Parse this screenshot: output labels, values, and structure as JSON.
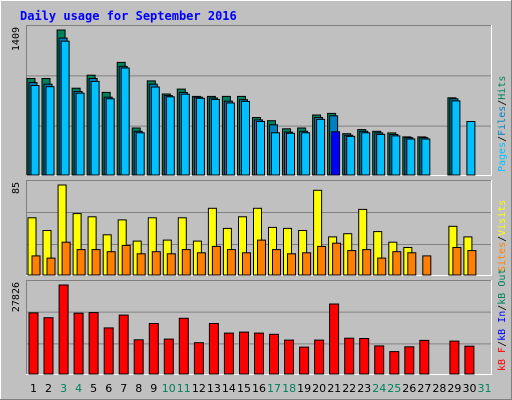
{
  "title": "Daily usage for September 2016",
  "colors": {
    "background": "#C0C0C0",
    "title": "#0000FF",
    "pages": "#00C0FF",
    "files": "#0080C0",
    "hits": "#00805C",
    "visits": "#FFFF00",
    "sites": "#FF8000",
    "kb_in": "#0000FF",
    "kb_out": "#00805C",
    "kb": "#FF0000",
    "today_highlight": "#0000FF",
    "weekend_label": "#00805C",
    "weekday_label": "#000000"
  },
  "chart_data": {
    "type": "bar",
    "days": [
      "1",
      "2",
      "3",
      "4",
      "5",
      "6",
      "7",
      "8",
      "9",
      "10",
      "11",
      "12",
      "13",
      "14",
      "15",
      "16",
      "17",
      "18",
      "19",
      "20",
      "21",
      "22",
      "23",
      "24",
      "25",
      "26",
      "27",
      "28",
      "29",
      "30",
      "31"
    ],
    "weekend_days": [
      "3",
      "4",
      "10",
      "11",
      "17",
      "18",
      "24",
      "25",
      "31"
    ],
    "today": "21",
    "panels": [
      {
        "name": "hits-files-pages",
        "ymax": 1409,
        "ymax_label": "1409",
        "side_labels": [
          {
            "text": "Pages",
            "color": "#00C0FF"
          },
          {
            "text": "/",
            "color": "#000000"
          },
          {
            "text": "Files",
            "color": "#0080C0"
          },
          {
            "text": "/",
            "color": "#000000"
          },
          {
            "text": "Hits",
            "color": "#00805C"
          }
        ],
        "series": [
          {
            "name": "Hits",
            "color": "#00805C",
            "values": [
              938,
              938,
              1409,
              843,
              970,
              803,
              1094,
              457,
              914,
              787,
              835,
              764,
              764,
              764,
              764,
              559,
              528,
              449,
              457,
              583,
              599,
              401,
              441,
              425,
              409,
              370,
              370,
              0,
              750,
              0,
              0
            ]
          },
          {
            "name": "Files",
            "color": "#0080C0",
            "values": [
              898,
              882,
              1330,
              811,
              938,
              756,
              1055,
              425,
              882,
              772,
              803,
              756,
              748,
              717,
              732,
              535,
              488,
              417,
              425,
              559,
              575,
              386,
              425,
              409,
              394,
              362,
              362,
              0,
              740,
              0,
              0
            ]
          },
          {
            "name": "Pages",
            "color": "#00C0FF",
            "values": [
              870,
              858,
              1300,
              795,
              910,
              740,
              1040,
              410,
              855,
              760,
              785,
              745,
              735,
              700,
              715,
              520,
              410,
              405,
              410,
              540,
              420,
              375,
              410,
              395,
              380,
              350,
              350,
              0,
              720,
              520,
              0
            ]
          }
        ]
      },
      {
        "name": "visits-sites",
        "ymax": 85,
        "ymax_label": "85",
        "side_labels": [
          {
            "text": "Sites",
            "color": "#FF8000"
          },
          {
            "text": "/",
            "color": "#000000"
          },
          {
            "text": "Visits",
            "color": "#FFFF00"
          }
        ],
        "series": [
          {
            "name": "Visits",
            "color": "#FFFF00",
            "values": [
              54,
              42,
              85,
              58,
              55,
              38,
              52,
              32,
              54,
              33,
              54,
              32,
              63,
              44,
              55,
              63,
              45,
              44,
              42,
              80,
              36,
              39,
              62,
              41,
              31,
              26,
              0,
              0,
              46,
              36,
              0
            ]
          },
          {
            "name": "Sites",
            "color": "#FF8000",
            "values": [
              18,
              16,
              31,
              24,
              24,
              22,
              28,
              20,
              22,
              20,
              24,
              21,
              27,
              24,
              21,
              33,
              24,
              20,
              21,
              27,
              30,
              23,
              24,
              16,
              22,
              21,
              18,
              0,
              26,
              23,
              0
            ]
          }
        ]
      },
      {
        "name": "kbytes",
        "ymax": 27826,
        "ymax_label": "27826",
        "side_labels": [
          {
            "text": "kB F",
            "color": "#FF0000"
          },
          {
            "text": "/",
            "color": "#000000"
          },
          {
            "text": "kB In",
            "color": "#0000FF"
          },
          {
            "text": "/",
            "color": "#000000"
          },
          {
            "text": "kB Out",
            "color": "#00805C"
          }
        ],
        "series": [
          {
            "name": "kB F",
            "color": "#FF0000",
            "values": [
              19100,
              17600,
              27826,
              19000,
              19200,
              14400,
              18400,
              10700,
              15800,
              10900,
              17400,
              9800,
              15800,
              12800,
              13100,
              12800,
              12400,
              10600,
              8400,
              10600,
              21900,
              11200,
              11100,
              8800,
              7000,
              8500,
              10500,
              0,
              10300,
              8700,
              0
            ]
          }
        ]
      }
    ]
  }
}
